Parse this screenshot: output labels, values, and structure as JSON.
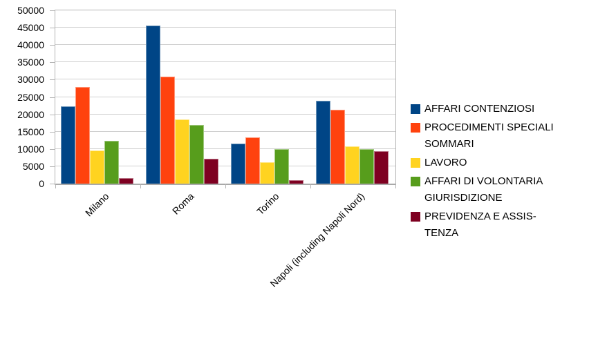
{
  "chart_data": {
    "type": "bar",
    "title": "",
    "xlabel": "",
    "ylabel": "",
    "categories": [
      "Milano",
      "Roma",
      "Torino",
      "Napoli (including Napoli Nord)"
    ],
    "series": [
      {
        "name": "AFFARI CONTENZIOSI",
        "color": "#004586",
        "values": [
          22300,
          45700,
          11600,
          24000
        ]
      },
      {
        "name": "PROCEDIMENTI SPECIALI SOMMARI",
        "color": "#ff420e",
        "values": [
          27900,
          30800,
          13400,
          21400
        ]
      },
      {
        "name": "LAVORO",
        "color": "#ffd320",
        "values": [
          9500,
          18500,
          6200,
          10700
        ]
      },
      {
        "name": "AFFARI DI VOLONTARIA GIURISDIZIONE",
        "color": "#579d1c",
        "values": [
          12400,
          17000,
          9900,
          9900
        ]
      },
      {
        "name": "PREVIDENZA E ASSISTENZA",
        "color": "#7e0021",
        "values": [
          1600,
          7200,
          900,
          9400
        ]
      }
    ],
    "legend_lines": [
      [
        "AFFARI CONTENZIOSI"
      ],
      [
        "PROCEDIMENTI SPECIALI",
        "SOMMARI"
      ],
      [
        "LAVORO"
      ],
      [
        "AFFARI DI VOLONTARIA",
        "GIURISDIZIONE"
      ],
      [
        "PREVIDENZA E ASSIS-",
        "TENZA"
      ]
    ],
    "ylim": [
      0,
      50000
    ],
    "ytick_step": 5000,
    "ytick_labels": [
      "0",
      "5000",
      "10000",
      "15000",
      "20000",
      "25000",
      "30000",
      "35000",
      "40000",
      "45000",
      "50000"
    ],
    "grid": "horizontal",
    "legend_position": "right",
    "background": "#ffffff",
    "gridline_color": "#d0d0d0",
    "axis_color": "#b3b3b3"
  }
}
